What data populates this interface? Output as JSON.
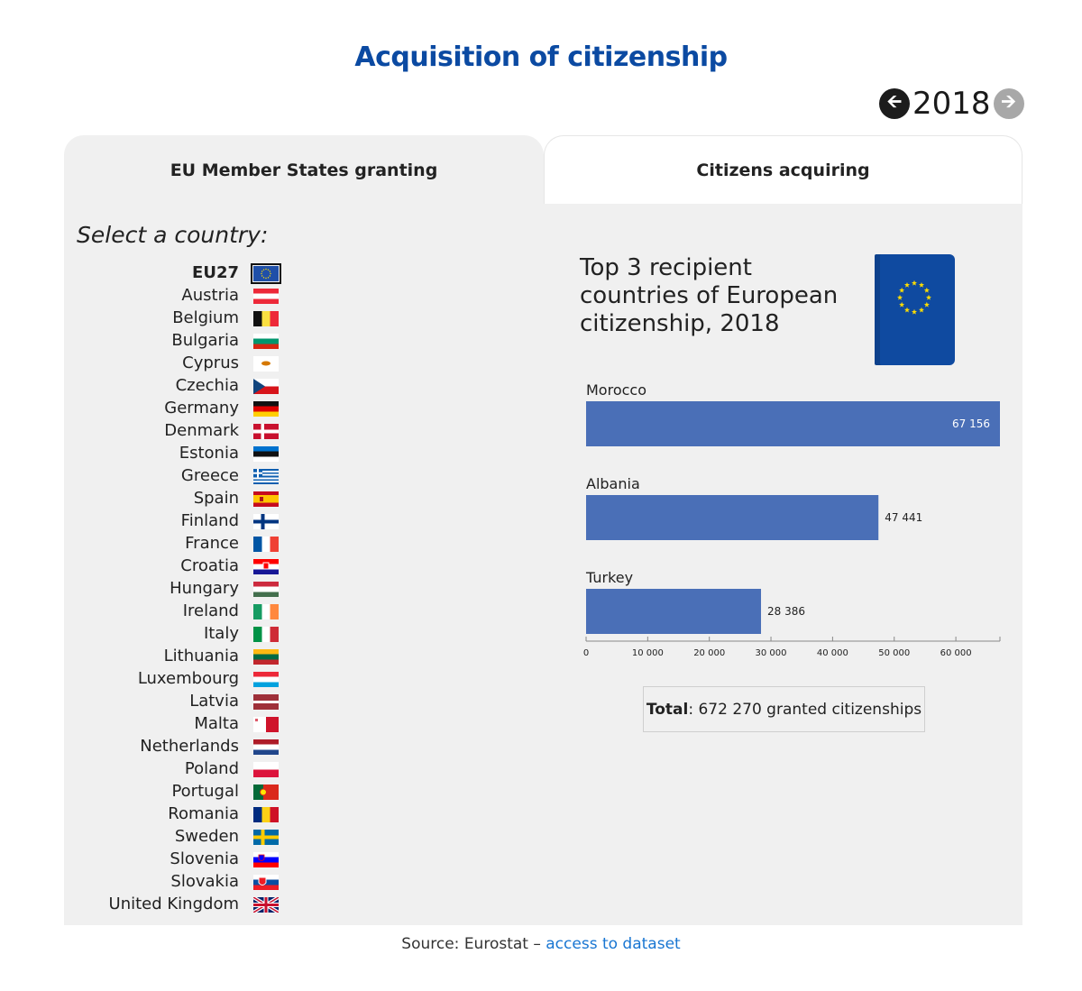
{
  "title": "Acquisition of citizenship",
  "year_nav": {
    "year": "2018",
    "prev_icon": "arrow-left-icon",
    "next_icon": "arrow-right-icon"
  },
  "tabs": [
    {
      "label": "EU Member States granting",
      "active": true
    },
    {
      "label": "Citizens acquiring",
      "active": false
    }
  ],
  "select_label": "Select a country:",
  "countries": [
    {
      "name": "EU27",
      "flag": "EU",
      "selected": true
    },
    {
      "name": "Austria",
      "flag": "AT"
    },
    {
      "name": "Belgium",
      "flag": "BE"
    },
    {
      "name": "Bulgaria",
      "flag": "BG"
    },
    {
      "name": "Cyprus",
      "flag": "CY"
    },
    {
      "name": "Czechia",
      "flag": "CZ"
    },
    {
      "name": "Germany",
      "flag": "DE"
    },
    {
      "name": "Denmark",
      "flag": "DK"
    },
    {
      "name": "Estonia",
      "flag": "EE"
    },
    {
      "name": "Greece",
      "flag": "GR"
    },
    {
      "name": "Spain",
      "flag": "ES"
    },
    {
      "name": "Finland",
      "flag": "FI"
    },
    {
      "name": "France",
      "flag": "FR"
    },
    {
      "name": "Croatia",
      "flag": "HR"
    },
    {
      "name": "Hungary",
      "flag": "HU"
    },
    {
      "name": "Ireland",
      "flag": "IE"
    },
    {
      "name": "Italy",
      "flag": "IT"
    },
    {
      "name": "Lithuania",
      "flag": "LT"
    },
    {
      "name": "Luxembourg",
      "flag": "LU"
    },
    {
      "name": "Latvia",
      "flag": "LV"
    },
    {
      "name": "Malta",
      "flag": "MT"
    },
    {
      "name": "Netherlands",
      "flag": "NL"
    },
    {
      "name": "Poland",
      "flag": "PL"
    },
    {
      "name": "Portugal",
      "flag": "PT"
    },
    {
      "name": "Romania",
      "flag": "RO"
    },
    {
      "name": "Sweden",
      "flag": "SE"
    },
    {
      "name": "Slovenia",
      "flag": "SI"
    },
    {
      "name": "Slovakia",
      "flag": "SK"
    },
    {
      "name": "United Kingdom",
      "flag": "UK"
    }
  ],
  "chart_heading": "Top 3 recipient countries of European citizenship, 2018",
  "passport_icon": "eu-passport-icon",
  "chart_data": {
    "type": "bar",
    "orientation": "horizontal",
    "categories": [
      "Morocco",
      "Albania",
      "Turkey"
    ],
    "values": [
      67156,
      47441,
      28386
    ],
    "value_labels": [
      "67 156",
      "47 441",
      "28 386"
    ],
    "xlim": [
      0,
      67156
    ],
    "x_ticks": [
      0,
      10000,
      20000,
      30000,
      40000,
      50000,
      60000
    ],
    "x_tick_labels": [
      "0",
      "10 000",
      "20 000",
      "30 000",
      "40 000",
      "50 000",
      "60 000"
    ],
    "bar_color": "#4a6fb7",
    "grid": false
  },
  "total": {
    "label": "Total",
    "text": ": 672 270 granted citizenships"
  },
  "source": {
    "prefix": "Source: Eurostat – ",
    "link_text": "access to dataset"
  },
  "colors": {
    "title": "#0b4aa2",
    "link": "#1976d2",
    "panel": "#f0f0f0"
  }
}
